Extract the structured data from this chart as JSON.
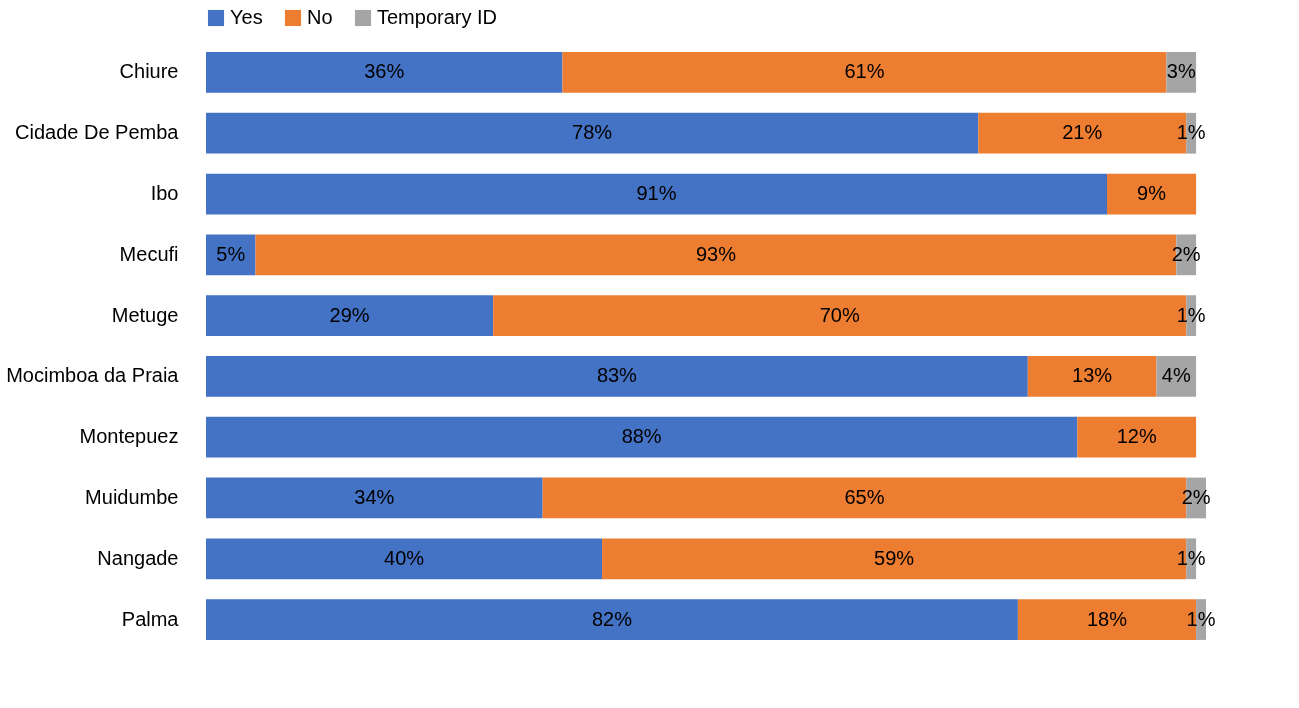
{
  "chart_data": {
    "type": "bar",
    "orientation": "horizontal",
    "stacked": true,
    "legend": "top",
    "tick_labels": "y",
    "grid": false,
    "categories": [
      "Chiure",
      "Cidade De Pemba",
      "Ibo",
      "Mecufi",
      "Metuge",
      "Mocimboa da Praia",
      "Montepuez",
      "Muidumbe",
      "Nangade",
      "Palma"
    ],
    "series": [
      {
        "name": "Yes",
        "color": "#4472c4",
        "values": [
          36,
          78,
          91,
          5,
          29,
          83,
          88,
          34,
          40,
          82
        ],
        "value_labels": [
          "36%",
          "78%",
          "91%",
          "5%",
          "29%",
          "83%",
          "88%",
          "34%",
          "40%",
          "82%"
        ]
      },
      {
        "name": "No",
        "color": "#ed7d31",
        "values": [
          61,
          21,
          9,
          93,
          70,
          13,
          12,
          65,
          59,
          18
        ],
        "value_labels": [
          "61%",
          "21%",
          "9%",
          "93%",
          "70%",
          "13%",
          "12%",
          "65%",
          "59%",
          "18%"
        ]
      },
      {
        "name": "Temporary ID",
        "color": "#a5a5a5",
        "values": [
          3,
          1,
          null,
          2,
          1,
          4,
          null,
          2,
          1,
          1
        ],
        "value_labels": [
          "3%",
          "1%",
          null,
          "2%",
          "1%",
          "4%",
          null,
          "2%",
          "1%",
          "1%"
        ]
      }
    ]
  }
}
